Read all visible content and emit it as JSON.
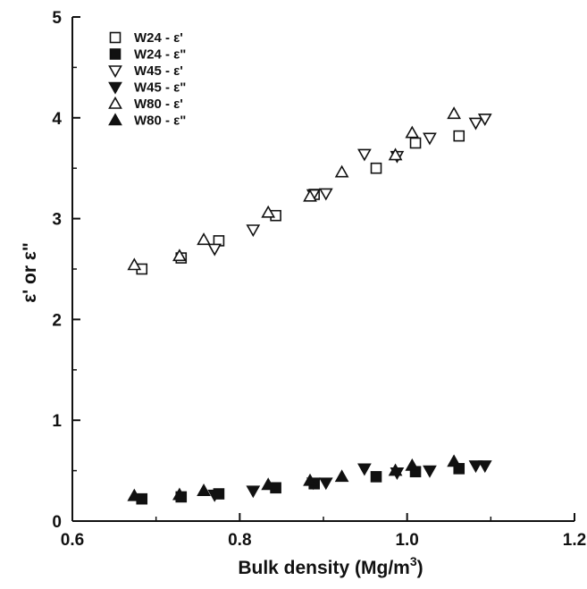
{
  "chart_data": {
    "type": "scatter",
    "xlabel": "Bulk density (Mg/m",
    "xlabel_sup": "3",
    "xlabel_end": ")",
    "ylabel": "ε' or ε\"",
    "xlim": [
      0.6,
      1.2
    ],
    "ylim": [
      0,
      5
    ],
    "x_ticks": [
      "0.6",
      "0.8",
      "1.0",
      "1.2"
    ],
    "y_ticks": [
      "0",
      "1",
      "2",
      "3",
      "4",
      "5"
    ],
    "grid": false,
    "legend_position": "top-left",
    "series": [
      {
        "name": "W24 - ε'",
        "marker": "square",
        "filled": false,
        "points": [
          [
            0.683,
            2.5
          ],
          [
            0.73,
            2.61
          ],
          [
            0.775,
            2.78
          ],
          [
            0.843,
            3.03
          ],
          [
            0.889,
            3.24
          ],
          [
            0.963,
            3.5
          ],
          [
            1.01,
            3.75
          ],
          [
            1.062,
            3.82
          ]
        ]
      },
      {
        "name": "W24 - ε\"",
        "marker": "square",
        "filled": true,
        "points": [
          [
            0.683,
            0.22
          ],
          [
            0.73,
            0.24
          ],
          [
            0.775,
            0.27
          ],
          [
            0.843,
            0.33
          ],
          [
            0.889,
            0.37
          ],
          [
            0.963,
            0.44
          ],
          [
            1.01,
            0.49
          ],
          [
            1.062,
            0.52
          ]
        ]
      },
      {
        "name": "W45 - ε'",
        "marker": "triangle-down",
        "filled": false,
        "points": [
          [
            0.77,
            2.7
          ],
          [
            0.816,
            2.89
          ],
          [
            0.888,
            3.24
          ],
          [
            0.903,
            3.25
          ],
          [
            0.949,
            3.64
          ],
          [
            0.988,
            3.62
          ],
          [
            1.027,
            3.8
          ],
          [
            1.082,
            3.95
          ],
          [
            1.093,
            3.99
          ]
        ]
      },
      {
        "name": "W45 - ε\"",
        "marker": "triangle-down",
        "filled": true,
        "points": [
          [
            0.77,
            0.26
          ],
          [
            0.816,
            0.3
          ],
          [
            0.888,
            0.38
          ],
          [
            0.903,
            0.38
          ],
          [
            0.949,
            0.52
          ],
          [
            0.988,
            0.48
          ],
          [
            1.027,
            0.5
          ],
          [
            1.082,
            0.55
          ],
          [
            1.093,
            0.55
          ]
        ]
      },
      {
        "name": "W80 - ε'",
        "marker": "triangle-up",
        "filled": false,
        "points": [
          [
            0.674,
            2.54
          ],
          [
            0.728,
            2.63
          ],
          [
            0.757,
            2.79
          ],
          [
            0.834,
            3.06
          ],
          [
            0.884,
            3.22
          ],
          [
            0.922,
            3.46
          ],
          [
            0.986,
            3.63
          ],
          [
            1.006,
            3.85
          ],
          [
            1.056,
            4.04
          ]
        ]
      },
      {
        "name": "W80 - ε\"",
        "marker": "triangle-up",
        "filled": true,
        "points": [
          [
            0.674,
            0.25
          ],
          [
            0.728,
            0.26
          ],
          [
            0.757,
            0.3
          ],
          [
            0.834,
            0.36
          ],
          [
            0.884,
            0.4
          ],
          [
            0.922,
            0.44
          ],
          [
            0.986,
            0.5
          ],
          [
            1.006,
            0.55
          ],
          [
            1.056,
            0.59
          ]
        ]
      }
    ]
  }
}
